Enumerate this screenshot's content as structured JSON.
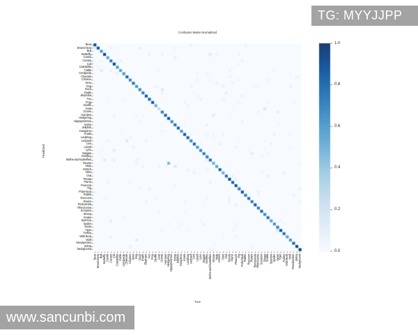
{
  "page": {
    "background": "#ffffff"
  },
  "watermarks": {
    "top_right": {
      "text": "TG: MYYJJPP",
      "bg": "#a3a3a3",
      "fg": "#ffffff"
    },
    "bottom_left": {
      "text": "www.sancunbi.com",
      "bg": "#a3a3a3",
      "fg": "#ffffff"
    }
  },
  "chart_data": {
    "type": "heatmap",
    "title": "Confusion Matrix Normalized",
    "xlabel": "True",
    "ylabel": "Predicted",
    "colormap": "Blues",
    "colormap_stops": [
      "#f7fbff",
      "#deebf7",
      "#c6dbef",
      "#9ecae1",
      "#6baed6",
      "#4292c6",
      "#2171b5",
      "#08519c",
      "#08306b"
    ],
    "value_range": [
      0.0,
      1.0
    ],
    "colorbar_ticks": [
      "1.0",
      "0.8",
      "0.6",
      "0.4",
      "0.2",
      "0.0"
    ],
    "legend_position": "right",
    "grid": false,
    "categories": [
      "Bear",
      "Brown-bear",
      "Bull",
      "Butterfly",
      "Camel",
      "Canary",
      "Cat",
      "Caterpillar",
      "Cattle",
      "Centipede",
      "Cheetah",
      "Chicken",
      "Deer",
      "Dog",
      "Duck",
      "Eagle",
      "Elephant",
      "Fox",
      "Frog",
      "Giraffe",
      "Goat",
      "Goose",
      "Hamster",
      "Hedgehog",
      "Hippopotamus",
      "Horse",
      "Jellyfish",
      "Kangaroo",
      "Koala",
      "Ladybug",
      "Leopard",
      "Lion",
      "Lizard",
      "Lynx",
      "Magpie",
      "Monkey",
      "Moths-and-butterflies",
      "Mouse",
      "Mule",
      "Ostrich",
      "Otter",
      "Owl",
      "Panda",
      "Parrot",
      "Peacock",
      "Pig",
      "Polar-bear",
      "Rabbit",
      "Raccoon",
      "Raven",
      "Red-panda",
      "Rhinoceros",
      "Scorpion",
      "Sheep",
      "Snake",
      "Sparrow",
      "Spider",
      "Swan",
      "Tiger",
      "Turkey",
      "Wild Boar",
      "Wolf",
      "Woodpecker",
      "Zebra",
      "background"
    ],
    "diagonal": [
      0.9,
      0.85,
      0.6,
      0.9,
      0.55,
      0.7,
      0.9,
      0.6,
      0.55,
      0.6,
      0.8,
      0.65,
      0.75,
      0.6,
      0.65,
      0.7,
      0.85,
      0.8,
      0.85,
      0.5,
      0.25,
      0.7,
      0.8,
      0.85,
      0.65,
      0.75,
      0.8,
      0.6,
      0.85,
      0.8,
      0.65,
      0.8,
      0.6,
      0.65,
      0.7,
      0.7,
      0.75,
      0.5,
      0.55,
      0.8,
      0.5,
      0.75,
      0.9,
      0.8,
      0.85,
      0.7,
      0.85,
      0.7,
      0.75,
      0.7,
      0.85,
      0.7,
      0.8,
      0.65,
      0.75,
      0.55,
      0.6,
      0.7,
      0.85,
      0.75,
      0.55,
      0.6,
      0.8,
      0.9,
      0.95
    ],
    "off_diagonal_cells": [
      {
        "row": "Mouse",
        "col": "Hedgehog",
        "value": 0.45
      },
      {
        "row": "Goat",
        "col": "Sheep",
        "value": 0.15
      },
      {
        "row": "Mule",
        "col": "Horse",
        "value": 0.15
      },
      {
        "row": "Leopard",
        "col": "Cheetah",
        "value": 0.12
      },
      {
        "row": "Duck",
        "col": "Goose",
        "value": 0.12
      },
      {
        "row": "Cattle",
        "col": "Bull",
        "value": 0.12
      },
      {
        "row": "Tiger",
        "col": "Swan",
        "value": 0.12
      },
      {
        "row": "Butterfly",
        "col": "Moths-and-butterflies",
        "value": 0.12
      },
      {
        "row": "Lynx",
        "col": "Cat",
        "value": 0.1
      },
      {
        "row": "Magpie",
        "col": "Raven",
        "value": 0.1
      },
      {
        "row": "Sparrow",
        "col": "Canary",
        "value": 0.1
      },
      {
        "row": "Wolf",
        "col": "Dog",
        "value": 0.1
      },
      {
        "row": "Brown-bear",
        "col": "Bear",
        "value": 0.1
      },
      {
        "row": "Moths-and-butterflies",
        "col": "Butterfly",
        "value": 0.1
      },
      {
        "row": "Hamster",
        "col": "Mouse",
        "value": 0.1
      },
      {
        "row": "Eagle",
        "col": "Owl",
        "value": 0.08
      },
      {
        "row": "Centipede",
        "col": "Caterpillar",
        "value": 0.08
      },
      {
        "row": "Camel",
        "col": "Horse",
        "value": 0.08
      },
      {
        "row": "Goose",
        "col": "Swan",
        "value": 0.08
      },
      {
        "row": "Deer",
        "col": "Mule",
        "value": 0.07
      }
    ],
    "speckle_noise": true
  }
}
